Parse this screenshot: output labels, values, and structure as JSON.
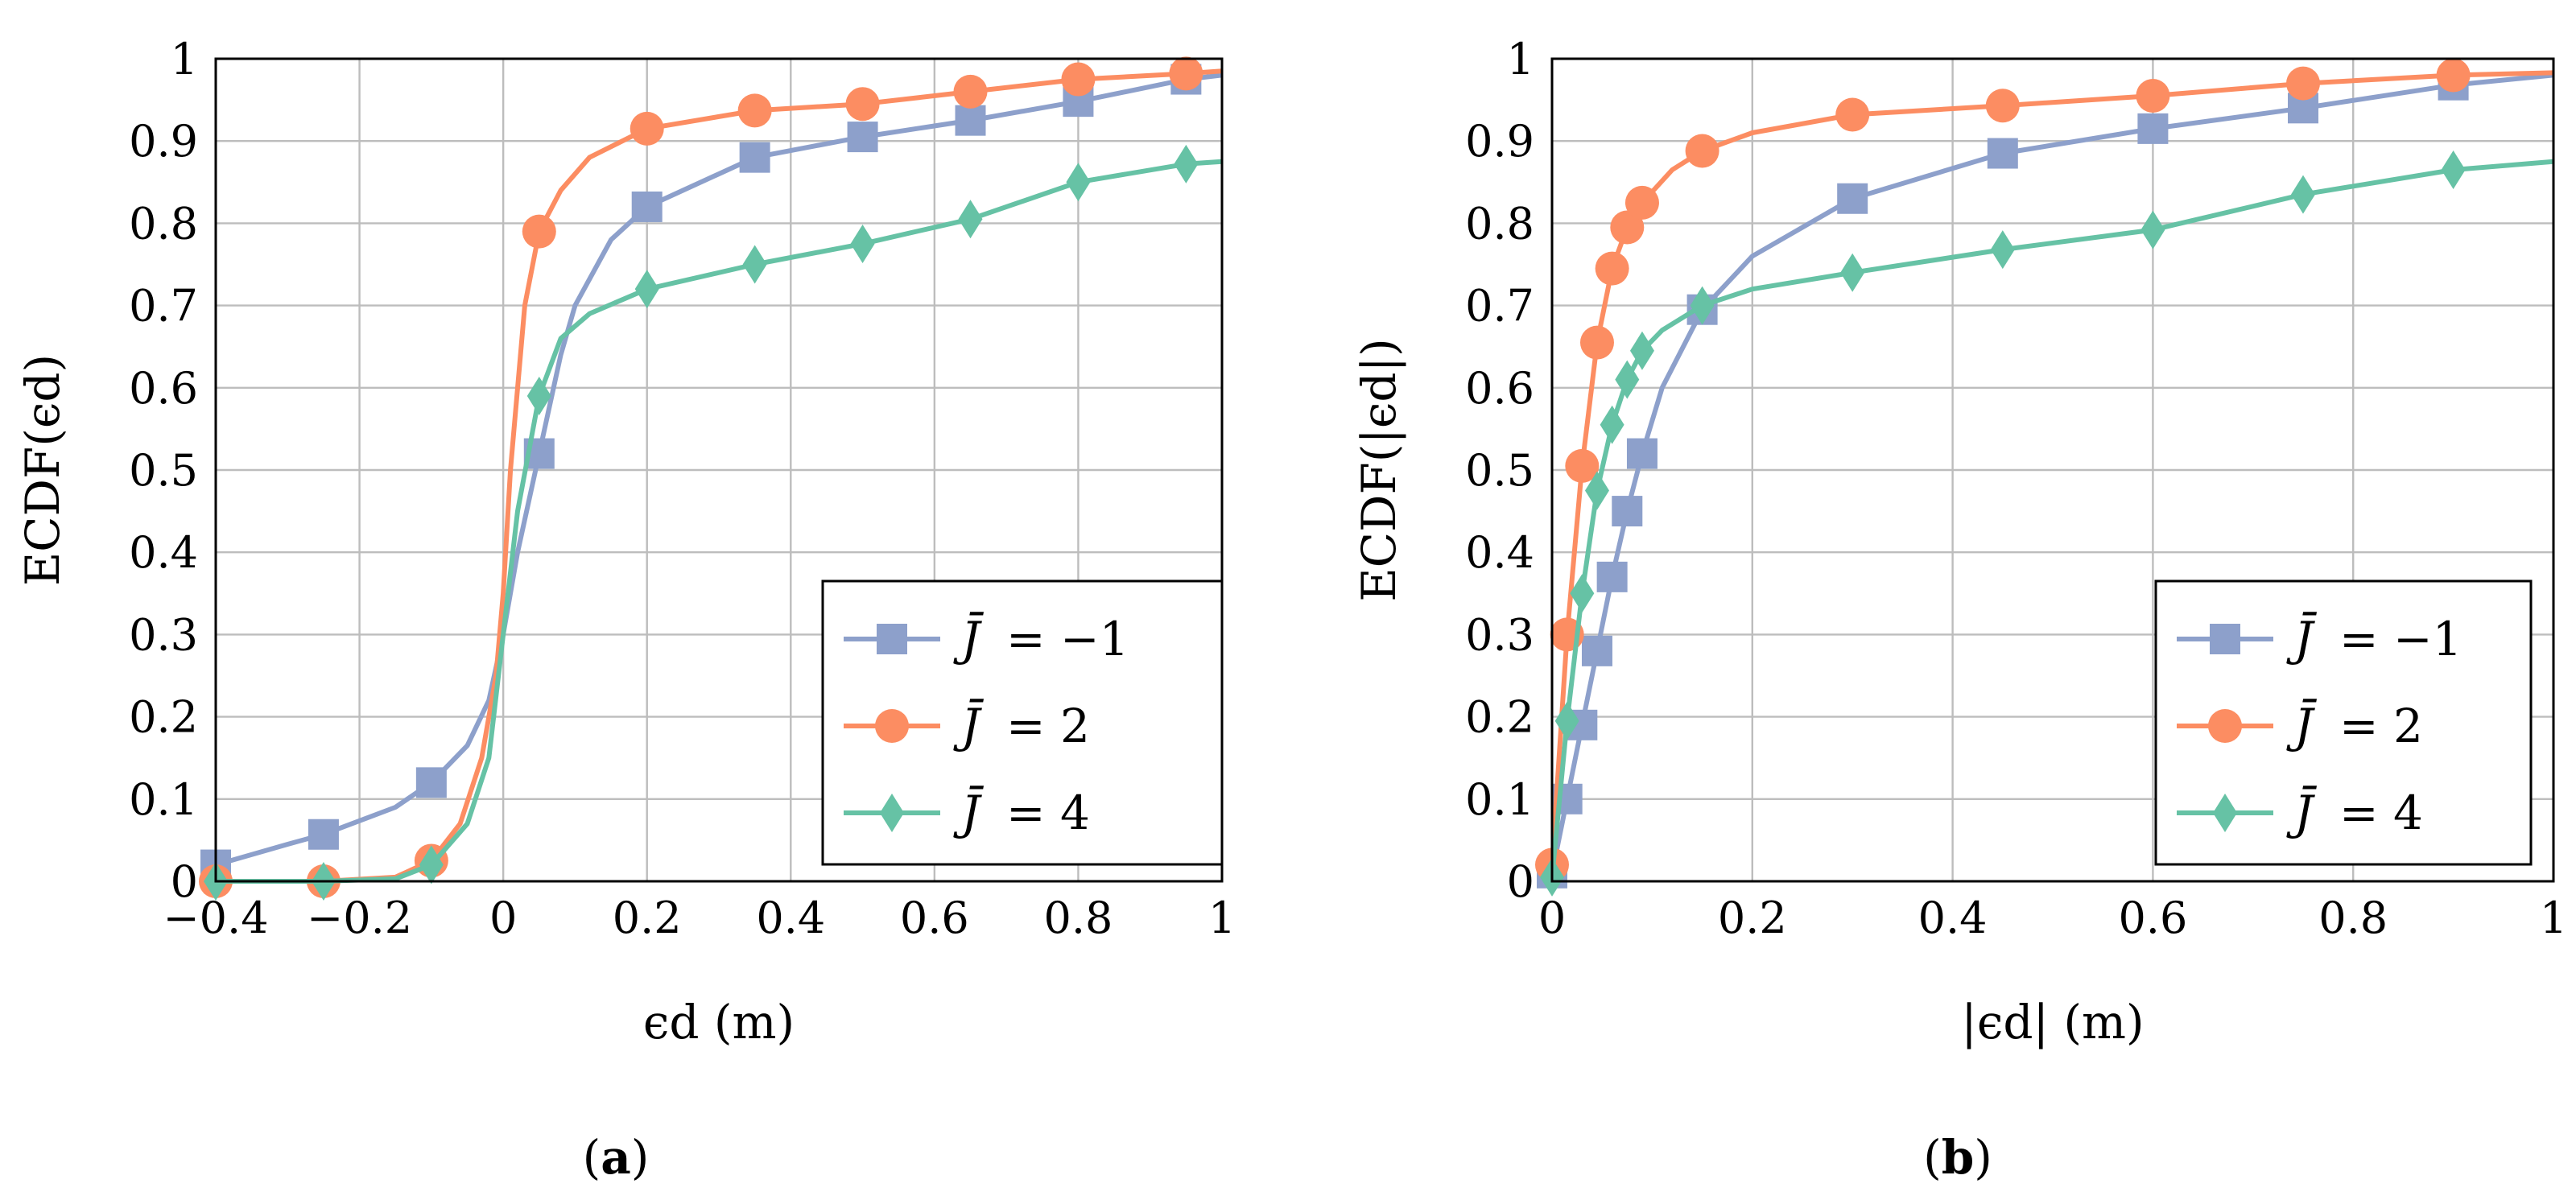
{
  "chart_data": [
    {
      "type": "line",
      "panel": "a",
      "caption_letter": "a",
      "xlabel": "ϵd (m)",
      "ylabel": "ECDF(ϵd)",
      "xlim": [
        -0.4,
        1
      ],
      "ylim": [
        0,
        1
      ],
      "grid": true,
      "legend_position": "bottom-right",
      "x_ticks": [
        -0.4,
        -0.2,
        0,
        0.2,
        0.4,
        0.6,
        0.8,
        1
      ],
      "x_tick_labels": [
        "−0.4",
        "−0.2",
        "0",
        "0.2",
        "0.4",
        "0.6",
        "0.8",
        "1"
      ],
      "y_ticks": [
        0,
        0.1,
        0.2,
        0.3,
        0.4,
        0.5,
        0.6,
        0.7,
        0.8,
        0.9,
        1
      ],
      "y_tick_labels": [
        "0",
        "0.1",
        "0.2",
        "0.3",
        "0.4",
        "0.5",
        "0.6",
        "0.7",
        "0.8",
        "0.9",
        "1"
      ],
      "series": [
        {
          "name": "J̄ = −1",
          "legend_lhs": "J̄",
          "legend_rhs": "= −1",
          "color": "#8da0cb",
          "marker": "square",
          "x": [
            -0.4,
            -0.3,
            -0.25,
            -0.15,
            -0.1,
            -0.05,
            -0.02,
            0,
            0.02,
            0.05,
            0.08,
            0.1,
            0.15,
            0.2,
            0.3,
            0.35,
            0.5,
            0.65,
            0.8,
            0.95,
            1
          ],
          "y": [
            0.02,
            0.045,
            0.057,
            0.09,
            0.12,
            0.165,
            0.22,
            0.3,
            0.4,
            0.52,
            0.64,
            0.7,
            0.78,
            0.82,
            0.86,
            0.88,
            0.905,
            0.925,
            0.948,
            0.975,
            0.98
          ],
          "markers_x": [
            -0.4,
            -0.25,
            -0.1,
            0.05,
            0.2,
            0.35,
            0.5,
            0.65,
            0.8,
            0.95
          ],
          "markers_y": [
            0.02,
            0.057,
            0.12,
            0.52,
            0.82,
            0.88,
            0.905,
            0.925,
            0.948,
            0.975
          ]
        },
        {
          "name": "J̄ = 2",
          "legend_lhs": "J̄",
          "legend_rhs": "= 2",
          "color": "#fc8d62",
          "marker": "circle",
          "x": [
            -0.4,
            -0.25,
            -0.15,
            -0.1,
            -0.06,
            -0.03,
            -0.01,
            0,
            0.01,
            0.03,
            0.05,
            0.08,
            0.12,
            0.2,
            0.35,
            0.5,
            0.65,
            0.8,
            0.95,
            1
          ],
          "y": [
            0,
            0,
            0.005,
            0.025,
            0.07,
            0.15,
            0.25,
            0.35,
            0.5,
            0.7,
            0.79,
            0.84,
            0.88,
            0.915,
            0.937,
            0.945,
            0.96,
            0.975,
            0.982,
            0.985
          ],
          "markers_x": [
            -0.4,
            -0.25,
            -0.1,
            0.05,
            0.2,
            0.35,
            0.5,
            0.65,
            0.8,
            0.95
          ],
          "markers_y": [
            0,
            0,
            0.025,
            0.79,
            0.915,
            0.937,
            0.945,
            0.96,
            0.975,
            0.982
          ]
        },
        {
          "name": "J̄ = 4",
          "legend_lhs": "J̄",
          "legend_rhs": "= 4",
          "color": "#66c2a5",
          "marker": "diamond",
          "x": [
            -0.4,
            -0.25,
            -0.15,
            -0.1,
            -0.05,
            -0.02,
            0,
            0.02,
            0.05,
            0.08,
            0.12,
            0.2,
            0.35,
            0.5,
            0.65,
            0.8,
            0.95,
            1
          ],
          "y": [
            0,
            0,
            0.003,
            0.02,
            0.07,
            0.15,
            0.3,
            0.45,
            0.59,
            0.66,
            0.69,
            0.72,
            0.75,
            0.775,
            0.805,
            0.85,
            0.872,
            0.875
          ],
          "markers_x": [
            -0.4,
            -0.25,
            -0.1,
            0.05,
            0.2,
            0.35,
            0.5,
            0.65,
            0.8,
            0.95
          ],
          "markers_y": [
            0,
            0,
            0.02,
            0.59,
            0.72,
            0.75,
            0.775,
            0.805,
            0.85,
            0.872
          ]
        }
      ]
    },
    {
      "type": "line",
      "panel": "b",
      "caption_letter": "b",
      "xlabel": "|ϵd| (m)",
      "ylabel": "ECDF(|ϵd|)",
      "xlim": [
        0,
        1
      ],
      "ylim": [
        0,
        1
      ],
      "grid": true,
      "legend_position": "bottom-right",
      "x_ticks": [
        0,
        0.2,
        0.4,
        0.6,
        0.8,
        1
      ],
      "x_tick_labels": [
        "0",
        "0.2",
        "0.4",
        "0.6",
        "0.8",
        "1"
      ],
      "y_ticks": [
        0,
        0.1,
        0.2,
        0.3,
        0.4,
        0.5,
        0.6,
        0.7,
        0.8,
        0.9,
        1
      ],
      "y_tick_labels": [
        "0",
        "0.1",
        "0.2",
        "0.3",
        "0.4",
        "0.5",
        "0.6",
        "0.7",
        "0.8",
        "0.9",
        "1"
      ],
      "series": [
        {
          "name": "J̄ = −1",
          "legend_lhs": "J̄",
          "legend_rhs": "= −1",
          "color": "#8da0cb",
          "marker": "square",
          "x": [
            0,
            0.015,
            0.03,
            0.045,
            0.06,
            0.075,
            0.09,
            0.11,
            0.15,
            0.2,
            0.3,
            0.45,
            0.6,
            0.75,
            0.9,
            1
          ],
          "y": [
            0.01,
            0.1,
            0.19,
            0.28,
            0.37,
            0.45,
            0.52,
            0.6,
            0.695,
            0.76,
            0.83,
            0.885,
            0.915,
            0.94,
            0.968,
            0.98
          ],
          "markers_x": [
            0,
            0.015,
            0.03,
            0.045,
            0.06,
            0.075,
            0.09,
            0.15,
            0.3,
            0.45,
            0.6,
            0.75,
            0.9
          ],
          "markers_y": [
            0.01,
            0.1,
            0.19,
            0.28,
            0.37,
            0.45,
            0.52,
            0.695,
            0.83,
            0.885,
            0.915,
            0.94,
            0.968
          ]
        },
        {
          "name": "J̄ = 2",
          "legend_lhs": "J̄",
          "legend_rhs": "= 2",
          "color": "#fc8d62",
          "marker": "circle",
          "x": [
            0,
            0.015,
            0.03,
            0.045,
            0.06,
            0.075,
            0.09,
            0.12,
            0.15,
            0.2,
            0.3,
            0.45,
            0.6,
            0.75,
            0.9,
            1
          ],
          "y": [
            0.02,
            0.3,
            0.505,
            0.655,
            0.745,
            0.795,
            0.825,
            0.865,
            0.888,
            0.91,
            0.932,
            0.943,
            0.955,
            0.97,
            0.98,
            0.983
          ],
          "markers_x": [
            0,
            0.015,
            0.03,
            0.045,
            0.06,
            0.075,
            0.09,
            0.15,
            0.3,
            0.45,
            0.6,
            0.75,
            0.9
          ],
          "markers_y": [
            0.02,
            0.3,
            0.505,
            0.655,
            0.745,
            0.795,
            0.825,
            0.888,
            0.932,
            0.943,
            0.955,
            0.97,
            0.98
          ]
        },
        {
          "name": "J̄ = 4",
          "legend_lhs": "J̄",
          "legend_rhs": "= 4",
          "color": "#66c2a5",
          "marker": "diamond",
          "x": [
            0,
            0.015,
            0.03,
            0.045,
            0.06,
            0.075,
            0.09,
            0.11,
            0.15,
            0.2,
            0.3,
            0.45,
            0.6,
            0.75,
            0.9,
            1
          ],
          "y": [
            0.005,
            0.195,
            0.35,
            0.475,
            0.555,
            0.61,
            0.645,
            0.67,
            0.7,
            0.72,
            0.74,
            0.768,
            0.792,
            0.835,
            0.865,
            0.875
          ],
          "markers_x": [
            0,
            0.015,
            0.03,
            0.045,
            0.06,
            0.075,
            0.09,
            0.15,
            0.3,
            0.45,
            0.6,
            0.75,
            0.9
          ],
          "markers_y": [
            0.005,
            0.195,
            0.35,
            0.475,
            0.555,
            0.61,
            0.645,
            0.7,
            0.74,
            0.768,
            0.792,
            0.835,
            0.865
          ]
        }
      ]
    }
  ]
}
